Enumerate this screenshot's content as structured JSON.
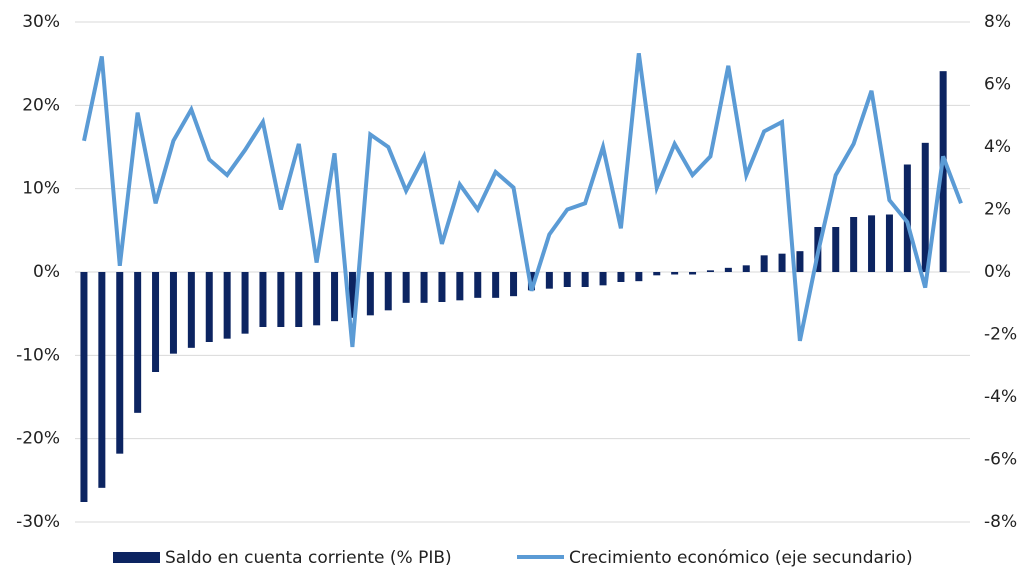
{
  "chart_data": {
    "type": "bar-line",
    "categories": [
      null,
      null,
      null,
      null,
      null,
      null,
      null,
      null,
      null,
      null,
      null,
      null,
      null,
      null,
      null,
      null,
      null,
      null,
      null,
      null,
      null,
      null,
      null,
      null,
      null,
      null,
      null,
      null,
      null,
      null,
      null,
      null,
      null,
      null,
      null,
      null,
      null,
      null,
      null,
      null,
      null,
      null,
      null,
      null,
      null,
      null,
      null,
      null,
      null,
      null
    ],
    "series": [
      {
        "name": "Saldo en cuenta corriente (% PIB)",
        "color": "#0c2461",
        "kind": "bar",
        "values": [
          -27.6,
          -25.9,
          -21.8,
          -16.9,
          -12.0,
          -9.8,
          -9.1,
          -8.4,
          -8.0,
          -7.4,
          -6.6,
          -6.6,
          -6.6,
          -6.4,
          -5.9,
          -5.5,
          -5.2,
          -4.6,
          -3.7,
          -3.7,
          -3.6,
          -3.4,
          -3.1,
          -3.1,
          -2.9,
          -2.2,
          -2.0,
          -1.8,
          -1.8,
          -1.6,
          -1.2,
          -1.1,
          -0.4,
          -0.3,
          -0.3,
          0.2,
          0.5,
          0.8,
          2.0,
          2.2,
          2.5,
          5.4,
          5.4,
          6.6,
          6.8,
          6.9,
          12.9,
          15.5,
          24.1,
          null
        ]
      },
      {
        "name": "Crecimiento económico (eje secundario)",
        "color": "#5b9bd5",
        "kind": "line",
        "axis": "y2",
        "values": [
          4.2,
          6.9,
          0.2,
          5.1,
          2.2,
          4.2,
          5.2,
          3.6,
          3.1,
          3.9,
          4.8,
          2.0,
          4.1,
          0.3,
          3.8,
          -2.4,
          4.4,
          4.0,
          2.6,
          3.7,
          0.9,
          2.8,
          2.0,
          3.2,
          2.7,
          -0.6,
          1.2,
          2.0,
          2.2,
          4.0,
          1.4,
          7.0,
          2.7,
          4.1,
          3.1,
          3.7,
          6.6,
          3.1,
          4.5,
          4.8,
          -2.2,
          0.6,
          3.1,
          4.1,
          5.8,
          2.3,
          1.6,
          -0.5,
          3.7,
          2.2
        ]
      }
    ],
    "ylim": [
      -30,
      30
    ],
    "yticks": [
      {
        "value": -30,
        "label": "-30%"
      },
      {
        "value": -20,
        "label": "-20%"
      },
      {
        "value": -10,
        "label": "-10%"
      },
      {
        "value": 0,
        "label": "0%"
      },
      {
        "value": 10,
        "label": "10%"
      },
      {
        "value": 20,
        "label": "20%"
      },
      {
        "value": 30,
        "label": "30%"
      }
    ],
    "y2lim": [
      -8,
      8
    ],
    "y2ticks": [
      {
        "value": -8,
        "label": "-8%"
      },
      {
        "value": -6,
        "label": "-6%"
      },
      {
        "value": -4,
        "label": "-4%"
      },
      {
        "value": -2,
        "label": "-2%"
      },
      {
        "value": 0,
        "label": "0%"
      },
      {
        "value": 2,
        "label": "2%"
      },
      {
        "value": 4,
        "label": "4%"
      },
      {
        "value": 6,
        "label": "6%"
      },
      {
        "value": 8,
        "label": "8%"
      }
    ],
    "grid": true,
    "legend": "bottom"
  }
}
